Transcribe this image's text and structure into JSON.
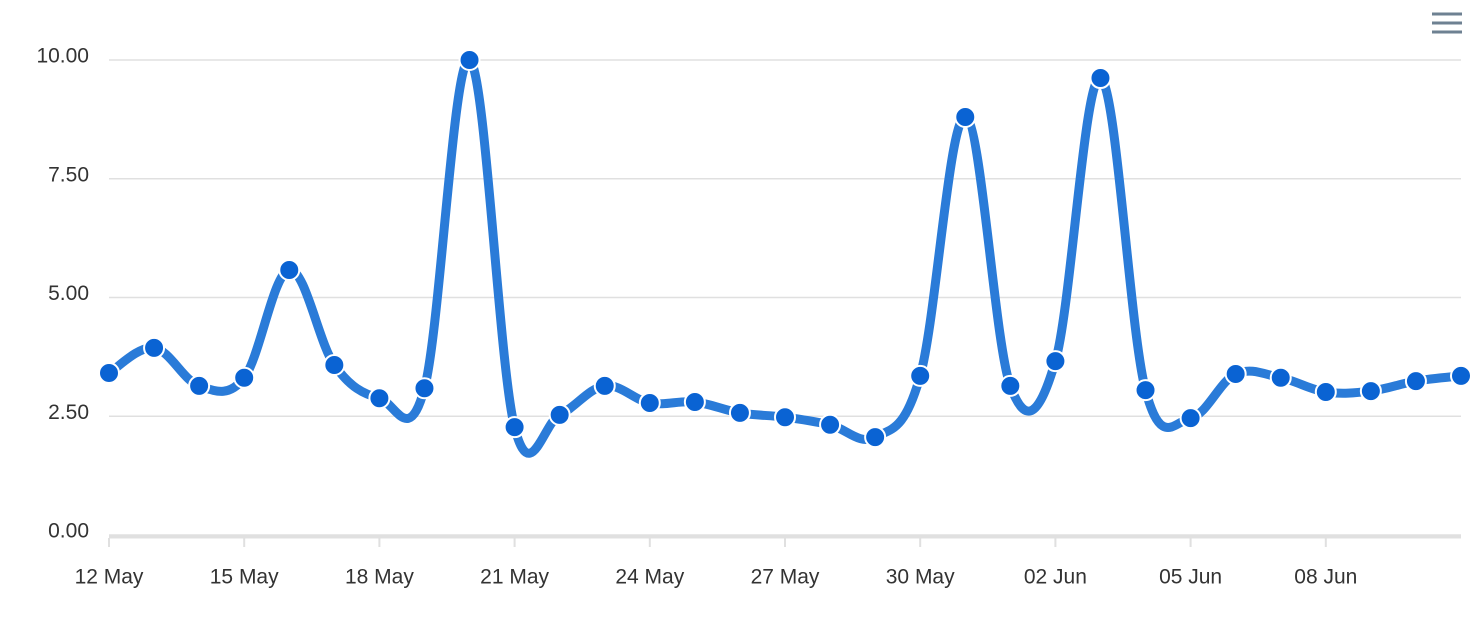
{
  "chart_data": {
    "type": "line",
    "categories": [
      "12 May",
      null,
      null,
      "15 May",
      null,
      null,
      "18 May",
      null,
      null,
      "21 May",
      null,
      null,
      "24 May",
      null,
      null,
      "27 May",
      null,
      null,
      "30 May",
      null,
      null,
      "02 Jun",
      null,
      null,
      "05 Jun",
      null,
      null,
      "08 Jun",
      null,
      null,
      null
    ],
    "series": [
      {
        "color": "#2a7bd8",
        "values": [
          3.41,
          3.94,
          3.14,
          3.31,
          5.58,
          3.58,
          2.88,
          3.09,
          10.0,
          2.27,
          2.53,
          3.14,
          2.78,
          2.8,
          2.57,
          2.48,
          2.32,
          2.06,
          3.35,
          8.8,
          3.14,
          3.66,
          9.62,
          3.05,
          2.46,
          3.39,
          3.31,
          3.01,
          3.03,
          3.24,
          3.35
        ]
      }
    ],
    "ylim": [
      0,
      10
    ],
    "yticks": [
      {
        "value": 0,
        "label": "0.00"
      },
      {
        "value": 2.5,
        "label": "2.50"
      },
      {
        "value": 5,
        "label": "5.00"
      },
      {
        "value": 7.5,
        "label": "7.50"
      },
      {
        "value": 10,
        "label": "10.00"
      }
    ],
    "grid": true,
    "marker_color": "#0a63d3"
  }
}
